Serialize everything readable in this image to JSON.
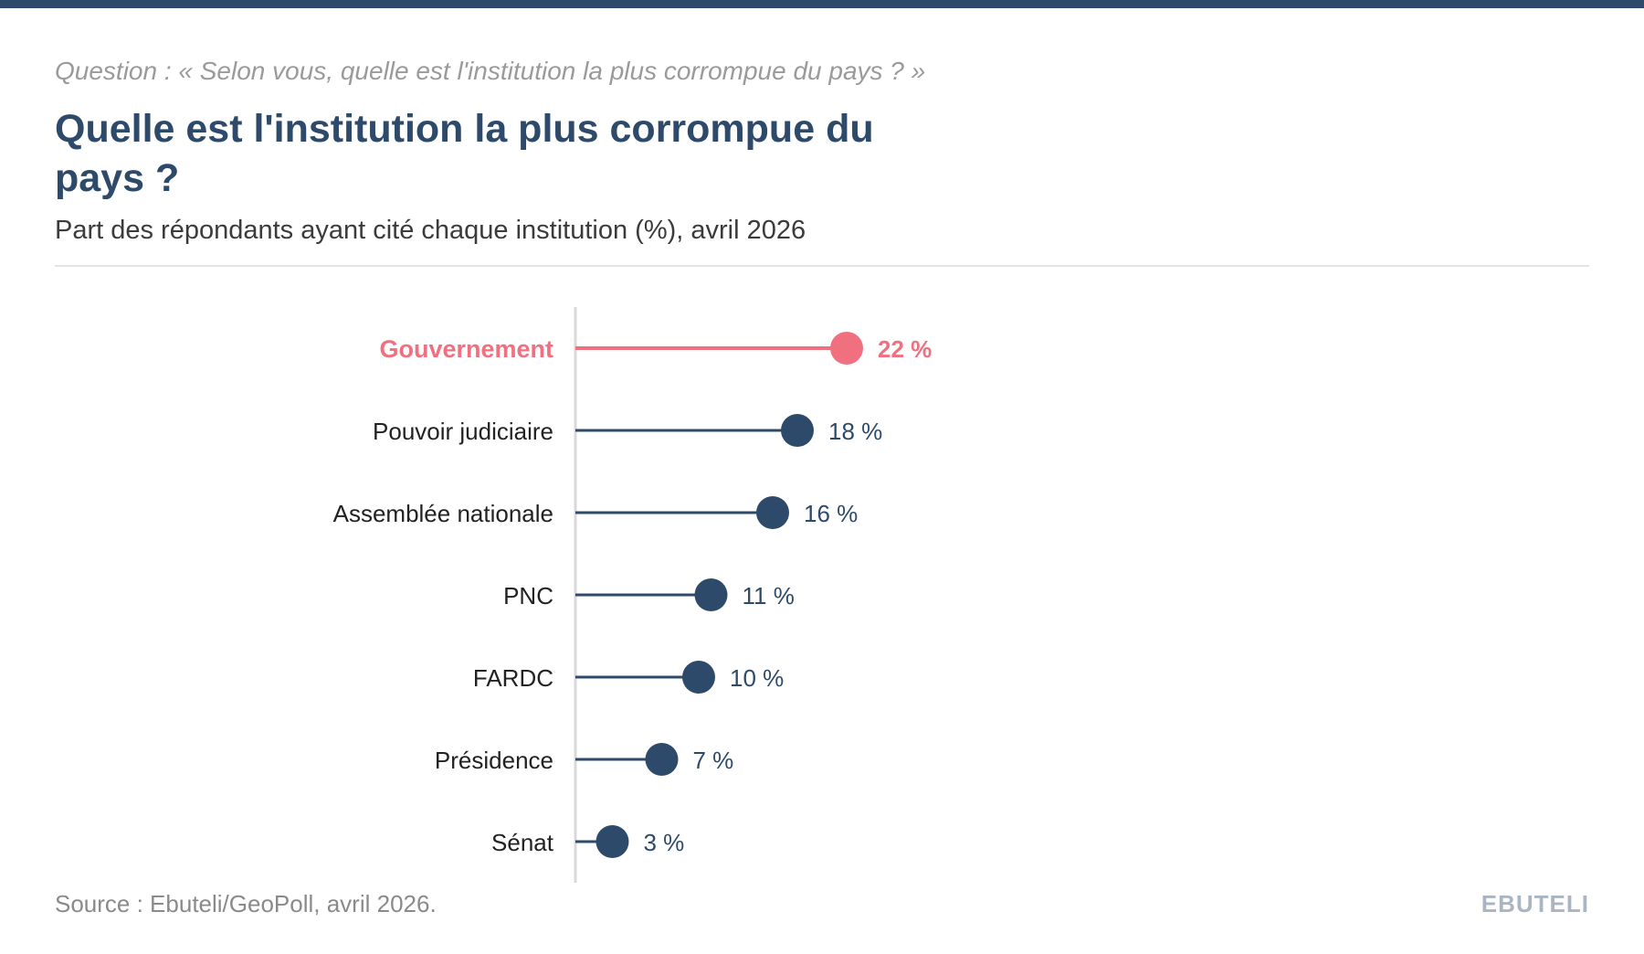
{
  "header": {
    "question": "Question : « Selon vous, quelle est l'institution la plus corrompue du pays ? »",
    "title": "Quelle est l'institution la plus corrompue du pays ?",
    "subtitle": "Part des répondants ayant cité chaque institution (%), avril 2026"
  },
  "footer": {
    "source": "Source : Ebuteli/GeoPoll, avril 2026.",
    "brand": "EBUTELI"
  },
  "colors": {
    "accent": "#f07080",
    "primary": "#2e4a6b",
    "axis": "#d9d9d9",
    "label": "#222222"
  },
  "chart_data": {
    "type": "lollipop-bar",
    "orientation": "horizontal",
    "highlight": "Gouvernement",
    "categories": [
      "Gouvernement",
      "Pouvoir judiciaire",
      "Assemblée nationale",
      "PNC",
      "FARDC",
      "Présidence",
      "Sénat"
    ],
    "values": [
      22,
      18,
      16,
      11,
      10,
      7,
      3
    ],
    "value_labels": [
      "22 %",
      "18 %",
      "16 %",
      "11 %",
      "10 %",
      "7 %",
      "3 %"
    ],
    "xlim": [
      0,
      22
    ],
    "grid": false
  }
}
